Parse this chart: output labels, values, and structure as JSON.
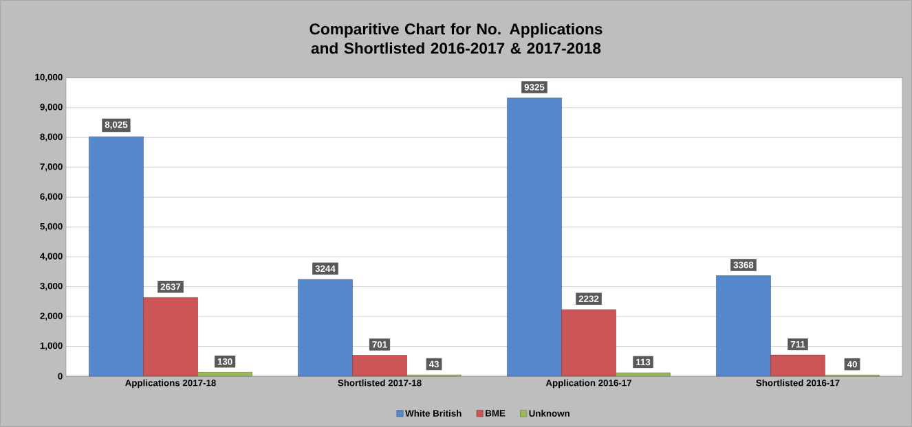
{
  "chart_data": {
    "type": "bar",
    "title": "Comparitive Chart for No. Applications and Shortlisted 2016-2017 & 2017-2018",
    "categories": [
      "Applications 2017-18",
      "Shortlisted 2017-18",
      "Application 2016-17",
      "Shortlisted 2016-17"
    ],
    "series": [
      {
        "name": "White British",
        "color": "#5588cc",
        "values": [
          8025,
          3244,
          9325,
          3368
        ],
        "value_labels": [
          "8,025",
          "3244",
          "9325",
          "3368"
        ]
      },
      {
        "name": "BME",
        "color": "#cc5555",
        "values": [
          2637,
          701,
          2232,
          711
        ],
        "value_labels": [
          "2637",
          "701",
          "2232",
          "711"
        ]
      },
      {
        "name": "Unknown",
        "color": "#9bbb59",
        "values": [
          130,
          43,
          113,
          40
        ],
        "value_labels": [
          "130",
          "43",
          "113",
          "40"
        ]
      }
    ],
    "ylim": [
      0,
      10000
    ],
    "yticks": [
      {
        "value": 0,
        "label": "0"
      },
      {
        "value": 1000,
        "label": "1,000"
      },
      {
        "value": 2000,
        "label": "2,000"
      },
      {
        "value": 3000,
        "label": "3,000"
      },
      {
        "value": 4000,
        "label": "4,000"
      },
      {
        "value": 5000,
        "label": "5,000"
      },
      {
        "value": 6000,
        "label": "6,000"
      },
      {
        "value": 7000,
        "label": "7,000"
      },
      {
        "value": 8000,
        "label": "8,000"
      },
      {
        "value": 9000,
        "label": "9,000"
      },
      {
        "value": 10000,
        "label": "10,000"
      }
    ],
    "grid": "y",
    "legend": "bottom"
  }
}
